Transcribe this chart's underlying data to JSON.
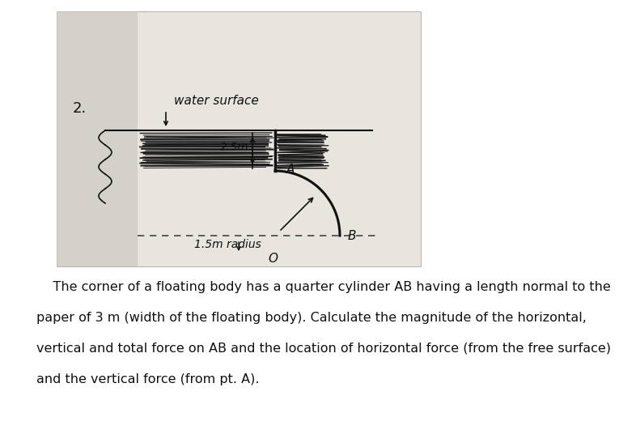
{
  "background_color": "#ffffff",
  "paper_bg": "#d8d4ce",
  "label_2": "2.",
  "label_water_surface": "water surface",
  "label_2_5m": "2.5m",
  "label_1_5m_radius": "1.5m radius",
  "label_A": "A",
  "label_B": "B",
  "label_O": "O",
  "text_lines": [
    "    The corner of a floating body has a quarter cylinder AB having a length normal to the",
    "paper of 3 m (width of the floating body). Calculate the magnitude of the horizontal,",
    "vertical and total force on AB and the location of horizontal force (from the free surface)",
    "and the vertical force (from pt. A)."
  ],
  "font_size_paragraph": 11.5,
  "hatch_color": "#1a1a1a",
  "ink_color": "#111111"
}
